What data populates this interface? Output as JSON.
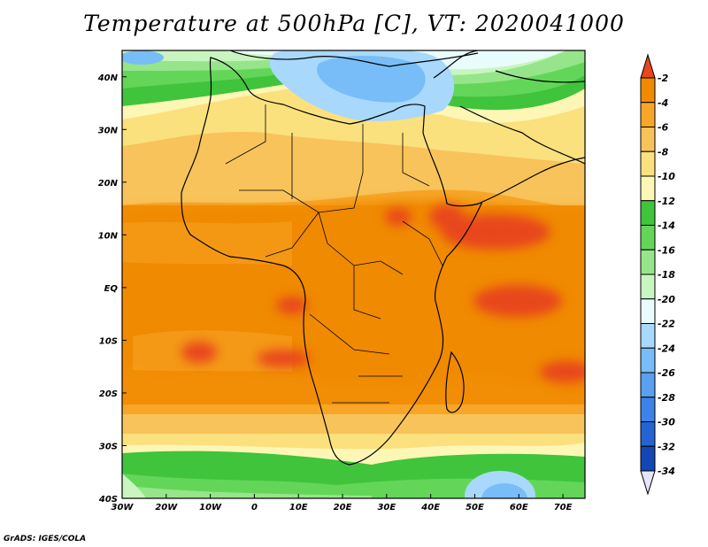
{
  "title": "Temperature at 500hPa [C], VT: 2020041000",
  "footer": "GrADS: IGES/COLA",
  "map": {
    "lon_range": [
      -30,
      75
    ],
    "lat_range": [
      -40,
      45
    ],
    "lon_ticks": [
      "30W",
      "20W",
      "10W",
      "0",
      "10E",
      "20E",
      "30E",
      "40E",
      "50E",
      "60E",
      "70E"
    ],
    "lat_ticks": [
      "40N",
      "30N",
      "20N",
      "10N",
      "EQ",
      "10S",
      "20S",
      "30S",
      "40S"
    ]
  },
  "colorbar": {
    "labels": [
      "-2",
      "-4",
      "-6",
      "-8",
      "-10",
      "-12",
      "-14",
      "-16",
      "-18",
      "-20",
      "-22",
      "-24",
      "-26",
      "-28",
      "-30",
      "-32",
      "-34"
    ],
    "colors": [
      "#e8461e",
      "#f08a00",
      "#f7a628",
      "#f8c35a",
      "#fbe07e",
      "#fdf6b4",
      "#3fc43c",
      "#63d65a",
      "#96e58a",
      "#c9f5c0",
      "#e8fcfb",
      "#a8d8fb",
      "#78bdf7",
      "#5aa0f0",
      "#3c82e8",
      "#2464d2",
      "#1446b4",
      "#0a1e78",
      "#e6e6fa"
    ]
  }
}
